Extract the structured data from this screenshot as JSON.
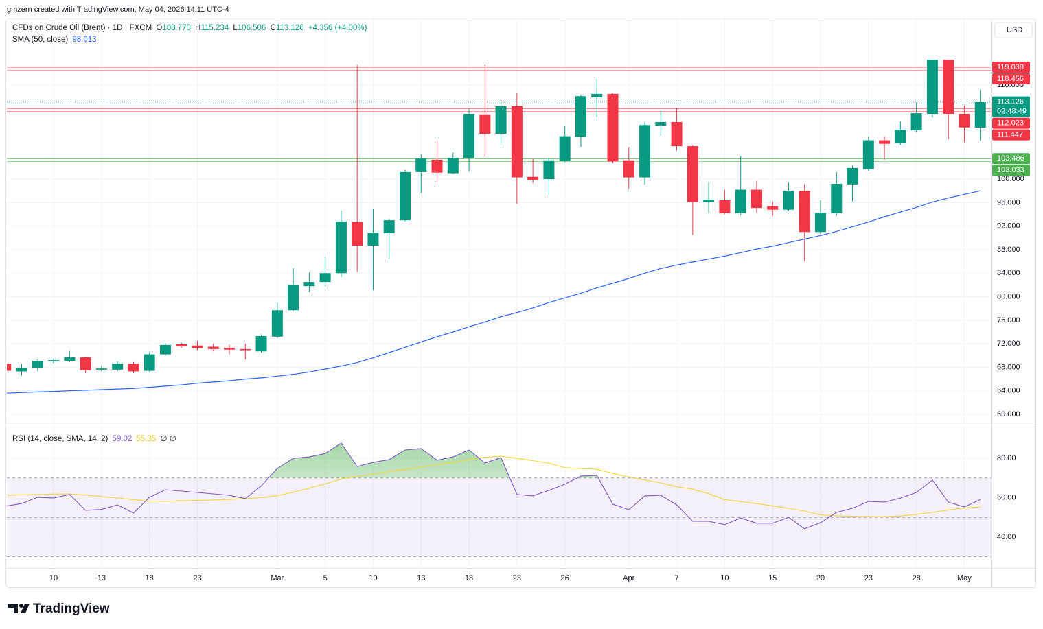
{
  "header": {
    "attribution": "gmzern created with TradingView.com, May 04, 2026 14:11 UTC-4",
    "currency": "USD",
    "brand": "TradingView"
  },
  "chart_data": {
    "type": "candlestick",
    "symbol": "CFDs on Crude Oil (Brent) · 1D · FXCM",
    "ohlc_labels": {
      "open": "O",
      "high": "H",
      "low": "L",
      "close": "C",
      "open_value": "108.770",
      "change": "+4.356 (+4.00%)"
    },
    "categories": [
      null,
      null,
      null,
      "10",
      null,
      null,
      "13",
      null,
      null,
      "18",
      null,
      null,
      "23",
      null,
      null,
      null,
      null,
      "Mar",
      null,
      null,
      "5",
      null,
      null,
      "10",
      null,
      null,
      "13",
      null,
      null,
      "18",
      null,
      null,
      "23",
      null,
      null,
      "26",
      null,
      null,
      null,
      "Apr",
      null,
      null,
      "7",
      null,
      null,
      "10",
      null,
      null,
      "15",
      null,
      null,
      "20",
      null,
      null,
      "23",
      null,
      null,
      "28",
      null,
      null,
      "May",
      null
    ],
    "open": [
      68.6,
      67.3,
      67.9,
      69.0,
      69.1,
      69.7,
      67.6,
      67.6,
      68.6,
      67.4,
      70.2,
      71.9,
      71.7,
      71.5,
      71.3,
      71.1,
      70.7,
      73.2,
      77.7,
      81.8,
      82.5,
      84.0,
      92.7,
      88.7,
      90.8,
      93.0,
      101.2,
      103.3,
      101.0,
      103.6,
      111.0,
      107.7,
      112.4,
      100.4,
      100.0,
      103.1,
      107.2,
      113.9,
      114.5,
      103.2,
      100.3,
      109.1,
      109.7,
      105.6,
      96.1,
      96.4,
      94.2,
      98.2,
      95.4,
      94.8,
      98.0,
      91.0,
      94.2,
      99.1,
      101.7,
      106.6,
      106.1,
      108.3,
      111.1,
      120.3,
      111.1,
      108.77
    ],
    "high": [
      68.8,
      68.6,
      69.3,
      69.5,
      70.8,
      69.8,
      68.3,
      69.0,
      68.9,
      70.6,
      72.1,
      72.2,
      72.5,
      72.0,
      71.8,
      72.0,
      73.6,
      79.0,
      84.9,
      84.1,
      86.7,
      94.7,
      119.4,
      95.0,
      93.2,
      101.6,
      104.2,
      106.5,
      104.5,
      112.0,
      119.4,
      113.1,
      114.6,
      103.4,
      103.6,
      109.0,
      114.4,
      117.0,
      114.6,
      105.4,
      109.7,
      111.7,
      112.1,
      105.8,
      99.5,
      98.2,
      103.9,
      99.7,
      96.2,
      99.4,
      99.1,
      96.4,
      101.2,
      102.3,
      107.2,
      107.2,
      109.8,
      113.0,
      120.3,
      120.3,
      112.5,
      115.234
    ],
    "low": [
      67.2,
      66.6,
      67.3,
      68.7,
      68.9,
      67.0,
      67.3,
      67.3,
      67.0,
      67.2,
      70.0,
      71.3,
      70.9,
      70.7,
      70.2,
      69.3,
      70.5,
      73.0,
      77.5,
      80.8,
      81.7,
      83.3,
      84.2,
      81.1,
      86.4,
      92.8,
      97.6,
      99.5,
      100.9,
      101.3,
      103.8,
      105.8,
      95.8,
      99.3,
      97.3,
      102.9,
      105.5,
      110.5,
      102.7,
      98.4,
      99.1,
      107.3,
      104.9,
      90.5,
      94.2,
      94.0,
      93.9,
      94.3,
      93.7,
      94.6,
      86.0,
      90.6,
      93.8,
      96.2,
      101.4,
      103.3,
      105.8,
      108.0,
      110.5,
      106.8,
      106.3,
      106.506
    ],
    "close": [
      67.4,
      67.9,
      69.1,
      69.2,
      69.7,
      67.5,
      67.8,
      68.6,
      67.3,
      70.2,
      71.8,
      71.6,
      71.3,
      71.1,
      71.0,
      70.9,
      73.3,
      77.7,
      82.0,
      82.5,
      84.0,
      92.8,
      88.7,
      90.9,
      93.0,
      101.2,
      103.5,
      101.1,
      103.6,
      111.1,
      107.7,
      112.4,
      100.3,
      99.9,
      103.2,
      107.3,
      114.1,
      114.5,
      103.0,
      100.3,
      109.2,
      109.7,
      105.6,
      96.1,
      96.5,
      94.2,
      98.2,
      95.1,
      94.8,
      98.0,
      91.0,
      94.3,
      99.2,
      101.9,
      106.6,
      106.0,
      108.4,
      111.2,
      120.3,
      111.1,
      108.8,
      113.126
    ],
    "up_color": "#089981",
    "down_color": "#f23645",
    "ylim": [
      57.9,
      127.2
    ],
    "yticks": [
      {
        "value": 60,
        "label": "60.000"
      },
      {
        "value": 64,
        "label": "64.000"
      },
      {
        "value": 68,
        "label": "68.000"
      },
      {
        "value": 72,
        "label": "72.000"
      },
      {
        "value": 76,
        "label": "76.000"
      },
      {
        "value": 80,
        "label": "80.000"
      },
      {
        "value": 84,
        "label": "84.000"
      },
      {
        "value": 88,
        "label": "88.000"
      },
      {
        "value": 92,
        "label": "92.000"
      },
      {
        "value": 96,
        "label": "96.000"
      },
      {
        "value": 100,
        "label": "100.000"
      },
      {
        "value": 116,
        "label": "116.000"
      }
    ],
    "grid": true,
    "overlays": [
      {
        "name": "SMA (50, close)",
        "color": "#2962ff",
        "values": [
          63.6,
          63.7,
          63.8,
          63.9,
          64.0,
          64.1,
          64.2,
          64.3,
          64.4,
          64.6,
          64.8,
          65.0,
          65.3,
          65.5,
          65.7,
          66.0,
          66.2,
          66.5,
          66.8,
          67.2,
          67.7,
          68.2,
          68.8,
          69.6,
          70.5,
          71.4,
          72.3,
          73.2,
          74.0,
          74.9,
          75.7,
          76.6,
          77.3,
          78.1,
          79.0,
          79.8,
          80.6,
          81.5,
          82.3,
          83.1,
          84.0,
          84.8,
          85.4,
          85.9,
          86.4,
          86.9,
          87.5,
          88.1,
          88.6,
          89.2,
          89.8,
          90.4,
          91.1,
          91.9,
          92.7,
          93.6,
          94.4,
          95.2,
          96.1,
          96.8,
          97.4,
          98.013
        ]
      }
    ],
    "levels": [
      {
        "value": 119.039,
        "color": "#f23645"
      },
      {
        "value": 118.456,
        "color": "#f23645"
      },
      {
        "value": 112.023,
        "color": "#f23645"
      },
      {
        "value": 111.447,
        "color": "#f23645"
      },
      {
        "value": 103.486,
        "color": "#4caf50"
      },
      {
        "value": 103.033,
        "color": "#4caf50"
      }
    ],
    "countdown": "02:48:49",
    "rsi": {
      "name": "RSI (14, close, SMA, 14, 2)",
      "extra": "∅ ∅",
      "color": "#7e57c2",
      "sma_color": "#f5d43b",
      "ylim": [
        24.3,
        95.7
      ],
      "yticks": [
        {
          "value": 40,
          "label": "40.00"
        },
        {
          "value": 60,
          "label": "60.00"
        },
        {
          "value": 80,
          "label": "80.00"
        }
      ],
      "bands": [
        70,
        50,
        30
      ],
      "values": [
        55.7,
        57.0,
        60.2,
        59.8,
        61.6,
        53.6,
        54.0,
        56.3,
        52.2,
        60.2,
        64.0,
        63.3,
        62.6,
        61.9,
        61.2,
        59.5,
        66.0,
        74.8,
        80.0,
        80.7,
        82.4,
        87.7,
        75.8,
        77.9,
        79.3,
        84.2,
        84.9,
        79.0,
        80.7,
        84.2,
        77.6,
        80.3,
        61.6,
        60.9,
        63.7,
        66.8,
        71.0,
        71.3,
        56.7,
        53.9,
        60.9,
        61.2,
        56.3,
        48.0,
        48.0,
        46.3,
        49.7,
        47.0,
        47.0,
        50.0,
        44.2,
        47.3,
        52.5,
        54.6,
        58.1,
        57.7,
        59.8,
        62.6,
        68.9,
        57.7,
        55.3,
        59.02
      ],
      "sma_values": [
        61.2,
        61.4,
        61.6,
        61.8,
        61.9,
        61.3,
        60.6,
        59.8,
        59.0,
        58.3,
        58.2,
        58.4,
        58.6,
        58.8,
        59.1,
        59.5,
        60.0,
        61.0,
        62.8,
        64.8,
        67.0,
        69.5,
        70.8,
        72.0,
        73.2,
        74.3,
        75.5,
        76.7,
        77.9,
        79.3,
        80.6,
        81.0,
        80.0,
        78.8,
        77.5,
        75.2,
        74.8,
        74.4,
        72.3,
        70.5,
        69.0,
        67.5,
        65.5,
        64.3,
        62.0,
        59.0,
        58.0,
        57.0,
        55.8,
        54.6,
        53.2,
        51.3,
        50.8,
        50.6,
        50.5,
        50.4,
        50.7,
        51.5,
        52.5,
        53.8,
        54.7,
        55.35
      ]
    }
  }
}
